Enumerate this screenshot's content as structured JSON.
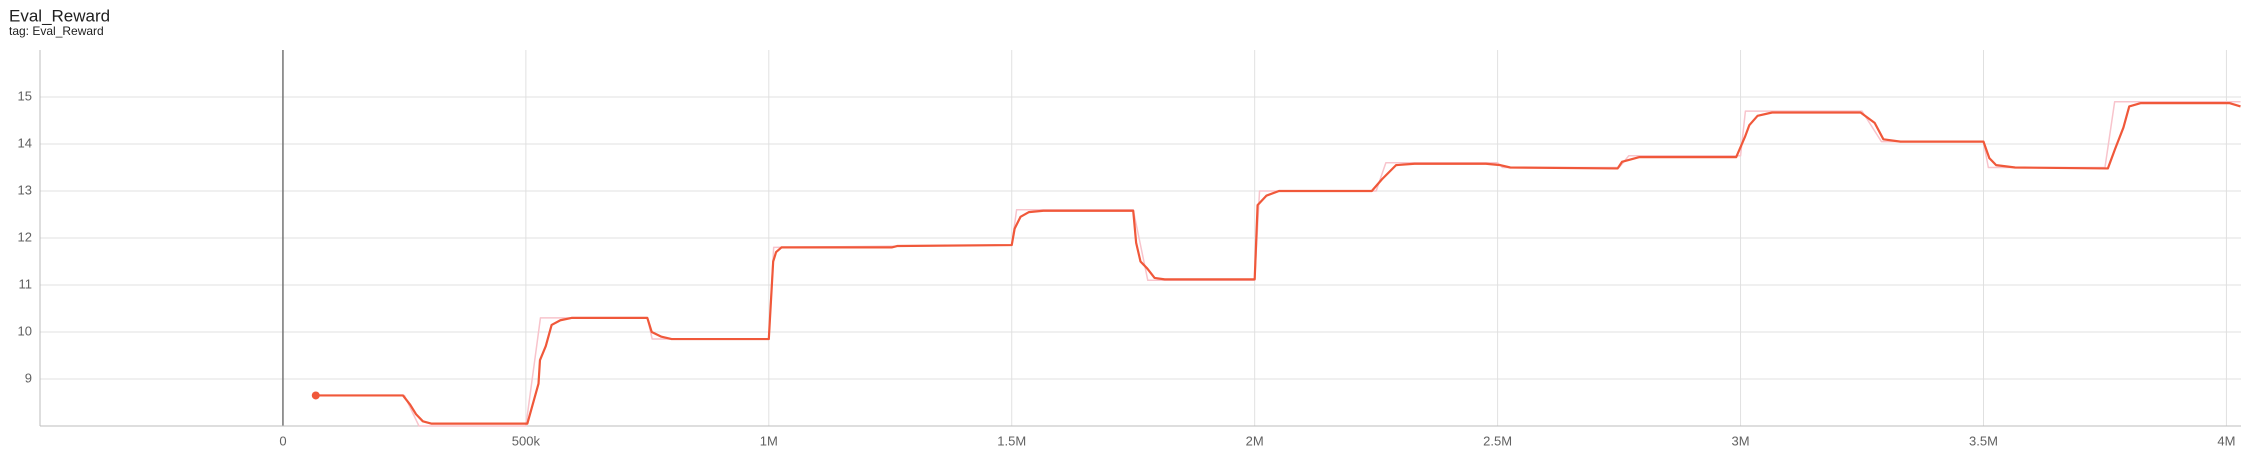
{
  "chart_data": {
    "type": "line",
    "title": "Eval_Reward",
    "subtitle": "tag: Eval_Reward",
    "xlim": [
      -500000,
      4030000
    ],
    "xticks": [
      0,
      {
        "value": 500000,
        "label": "500k"
      },
      {
        "value": 1000000,
        "label": "1M"
      },
      {
        "value": 1500000,
        "label": "1.5M"
      },
      {
        "value": 2000000,
        "label": "2M"
      },
      {
        "value": 2500000,
        "label": "2.5M"
      },
      {
        "value": 3000000,
        "label": "3M"
      },
      {
        "value": 3500000,
        "label": "3.5M"
      },
      {
        "value": 4000000,
        "label": "4M"
      }
    ],
    "ylim": [
      8,
      16
    ],
    "yticks": [
      9,
      10,
      11,
      12,
      13,
      14,
      15
    ],
    "grid": true,
    "series": [
      {
        "color": "#f8c4cc",
        "x": [
          67600,
          250000,
          280000,
          500000,
          530000,
          750000,
          760000,
          1000000,
          1010000,
          1500000,
          1510000,
          1750000,
          1780000,
          2000000,
          2010000,
          2250000,
          2270000,
          2500000,
          2510000,
          2750000,
          2770000,
          3000000,
          3010000,
          3250000,
          3290000,
          3500000,
          3510000,
          3750000,
          3770000,
          4029000
        ],
        "values": [
          8.65,
          8.65,
          8.0,
          8.0,
          10.3,
          10.3,
          9.85,
          9.85,
          11.8,
          11.85,
          12.6,
          12.6,
          11.1,
          11.1,
          13.0,
          13.0,
          13.6,
          13.6,
          13.5,
          13.5,
          13.75,
          13.75,
          14.7,
          14.7,
          14.05,
          14.05,
          13.5,
          13.5,
          14.9,
          14.9
        ]
      },
      {
        "color": "#f0583a",
        "x": [
          67600,
          247000,
          262000,
          274000,
          288000,
          306000,
          503000,
          526000,
          529000,
          541000,
          553000,
          571000,
          594000,
          750000,
          759000,
          779000,
          800000,
          1000000,
          1009000,
          1015000,
          1026000,
          1253000,
          1265000,
          1500000,
          1506000,
          1518000,
          1535000,
          1565000,
          1750000,
          1756000,
          1765000,
          1779000,
          1794000,
          1815000,
          2000000,
          2006000,
          2024000,
          2050000,
          2241000,
          2262000,
          2291000,
          2329000,
          2476000,
          2506000,
          2526000,
          2747000,
          2756000,
          2791000,
          2991000,
          3009000,
          3018000,
          3035000,
          3065000,
          3247000,
          3276000,
          3294000,
          3329000,
          3500000,
          3512000,
          3526000,
          3565000,
          3756000,
          3771000,
          3788000,
          3800000,
          3824000,
          4006000,
          4029000
        ],
        "values": [
          8.65,
          8.65,
          8.45,
          8.25,
          8.1,
          8.05,
          8.05,
          8.9,
          9.4,
          9.7,
          10.15,
          10.25,
          10.3,
          10.3,
          10.0,
          9.9,
          9.85,
          9.85,
          11.5,
          11.7,
          11.8,
          11.8,
          11.83,
          11.85,
          12.2,
          12.45,
          12.55,
          12.58,
          12.58,
          11.9,
          11.5,
          11.35,
          11.15,
          11.12,
          11.12,
          12.7,
          12.9,
          13.0,
          13.0,
          13.25,
          13.55,
          13.58,
          13.58,
          13.55,
          13.5,
          13.48,
          13.62,
          13.72,
          13.72,
          14.15,
          14.4,
          14.6,
          14.67,
          14.67,
          14.45,
          14.1,
          14.05,
          14.05,
          13.7,
          13.55,
          13.5,
          13.48,
          13.9,
          14.35,
          14.8,
          14.87,
          14.87,
          14.8
        ]
      }
    ]
  }
}
